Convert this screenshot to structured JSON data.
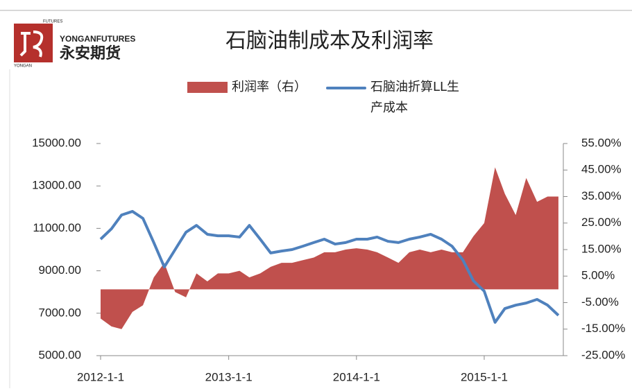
{
  "logo": {
    "small_top": "FUTURES",
    "small_side": "YONGAN",
    "en": "YONGANFUTURES",
    "cn": "永安期货"
  },
  "chart_data": {
    "type": "area-line",
    "title": "石脑油制成本及利润率",
    "x": [
      "2012-1-1",
      "2012-2-1",
      "2012-3-1",
      "2012-4-1",
      "2012-5-1",
      "2012-6-1",
      "2012-7-1",
      "2012-8-1",
      "2012-9-1",
      "2012-10-1",
      "2012-11-1",
      "2012-12-1",
      "2013-1-1",
      "2013-2-1",
      "2013-3-1",
      "2013-4-1",
      "2013-5-1",
      "2013-6-1",
      "2013-7-1",
      "2013-8-1",
      "2013-9-1",
      "2013-10-1",
      "2013-11-1",
      "2013-12-1",
      "2014-1-1",
      "2014-2-1",
      "2014-3-1",
      "2014-4-1",
      "2014-5-1",
      "2014-6-1",
      "2014-7-1",
      "2014-8-1",
      "2014-9-1",
      "2014-10-1",
      "2014-11-1",
      "2014-12-1",
      "2015-1-1",
      "2015-2-1",
      "2015-3-1",
      "2015-4-1",
      "2015-5-1",
      "2015-6-1",
      "2015-7-1",
      "2015-8-1"
    ],
    "series": [
      {
        "name": "利润率（右）",
        "kind": "area",
        "axis": "y2",
        "color": "#c0504d",
        "values": [
          -11,
          -14,
          -15,
          -8.5,
          -6,
          4.5,
          10,
          -1,
          -3,
          6,
          3,
          6,
          6,
          7,
          4.5,
          6,
          8.5,
          10,
          10,
          11,
          12,
          14,
          14,
          15,
          15.5,
          15,
          14,
          12,
          10,
          14,
          15,
          14,
          15,
          14,
          14,
          20,
          25,
          46,
          36,
          28,
          42,
          33,
          35,
          35
        ]
      },
      {
        "name": "石脑油折算LL生产成本",
        "kind": "line",
        "axis": "y",
        "color": "#4f81bd",
        "values": [
          10490,
          10980,
          11630,
          11800,
          11470,
          10330,
          9180,
          10000,
          10820,
          11140,
          10720,
          10650,
          10650,
          10590,
          11140,
          10490,
          9840,
          9930,
          10000,
          10160,
          10330,
          10490,
          10260,
          10330,
          10490,
          10490,
          10590,
          10390,
          10330,
          10490,
          10590,
          10720,
          10490,
          10160,
          9510,
          8530,
          8040,
          6570,
          7220,
          7380,
          7480,
          7650,
          7380,
          6900
        ]
      }
    ],
    "xlim": [
      "2012-1-1",
      "2015-8-15"
    ],
    "xticks": [
      "2012-1-1",
      "2013-1-1",
      "2014-1-1",
      "2015-1-1"
    ],
    "ylim": [
      5000,
      15000
    ],
    "yticks": [
      {
        "value": 5000,
        "label": "5000.00"
      },
      {
        "value": 7000,
        "label": "7000.00"
      },
      {
        "value": 9000,
        "label": "9000.00"
      },
      {
        "value": 11000,
        "label": "11000.00"
      },
      {
        "value": 13000,
        "label": "13000.00"
      },
      {
        "value": 15000,
        "label": "15000.00"
      }
    ],
    "y2lim": [
      -25,
      55
    ],
    "y2ticks": [
      {
        "value": -25,
        "label": "-25.00%"
      },
      {
        "value": -15,
        "label": "-15.00%"
      },
      {
        "value": -5,
        "label": "-5.00%"
      },
      {
        "value": 5,
        "label": "5.00%"
      },
      {
        "value": 15,
        "label": "15.00%"
      },
      {
        "value": 25,
        "label": "25.00%"
      },
      {
        "value": 35,
        "label": "35.00%"
      },
      {
        "value": 45,
        "label": "45.00%"
      },
      {
        "value": 55,
        "label": "55.00%"
      }
    ]
  }
}
